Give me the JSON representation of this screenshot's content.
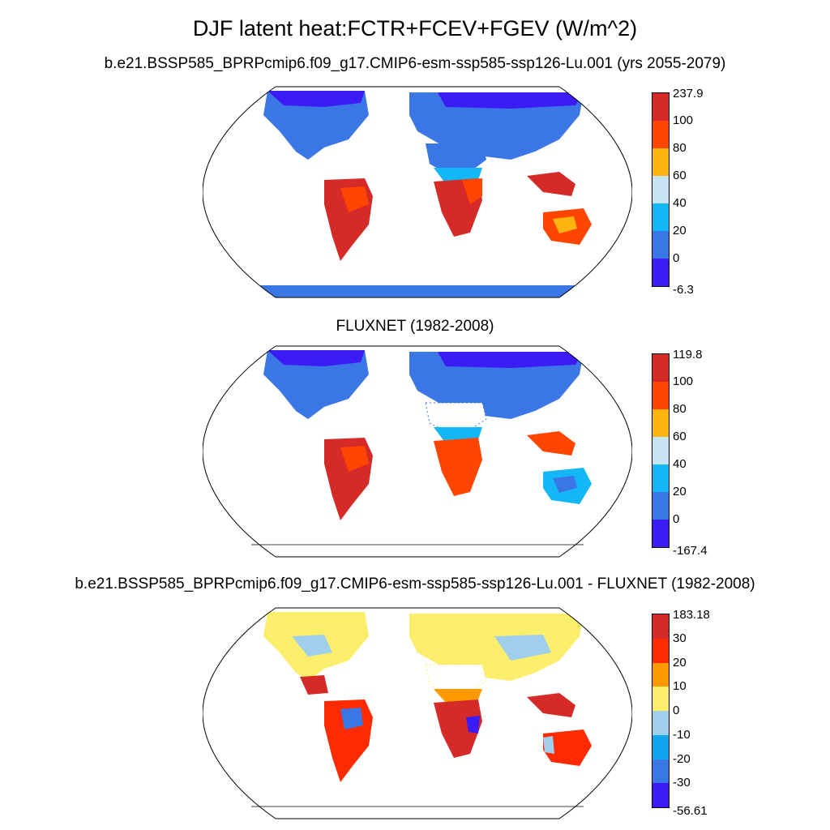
{
  "title": "DJF latent heat:FCTR+FCEV+FGEV (W/m^2)",
  "panels": [
    {
      "title": "b.e21.BSSP585_BPRPcmip6.f09_g17.CMIP6-esm-ssp585-ssp126-Lu.001 (yrs 2055-2079)",
      "colorbar": {
        "labels": [
          "237.9",
          "100",
          "80",
          "60",
          "40",
          "20",
          "0",
          "-6.3"
        ],
        "colors": [
          "#d62a28",
          "#ff4500",
          "#fcb40f",
          "#c6e4f4",
          "#13b7f5",
          "#3b76e6",
          "#3b1cf5"
        ]
      }
    },
    {
      "title": "FLUXNET (1982-2008)",
      "colorbar": {
        "labels": [
          "119.8",
          "100",
          "80",
          "60",
          "40",
          "20",
          "0",
          "-167.4"
        ],
        "colors": [
          "#d62a28",
          "#ff4500",
          "#fcb40f",
          "#c6e4f4",
          "#13b7f5",
          "#3b76e6",
          "#3b1cf5"
        ]
      }
    },
    {
      "title": "b.e21.BSSP585_BPRPcmip6.f09_g17.CMIP6-esm-ssp585-ssp126-Lu.001 - FLUXNET (1982-2008)",
      "colorbar": {
        "labels": [
          "183.18",
          "30",
          "20",
          "10",
          "0",
          "-10",
          "-20",
          "-30",
          "-56.61"
        ],
        "colors": [
          "#d62a28",
          "#ff2a00",
          "#ff9900",
          "#fbee6b",
          "#9fcfec",
          "#13a4f0",
          "#3b76e6",
          "#3b1cf5"
        ]
      }
    }
  ]
}
